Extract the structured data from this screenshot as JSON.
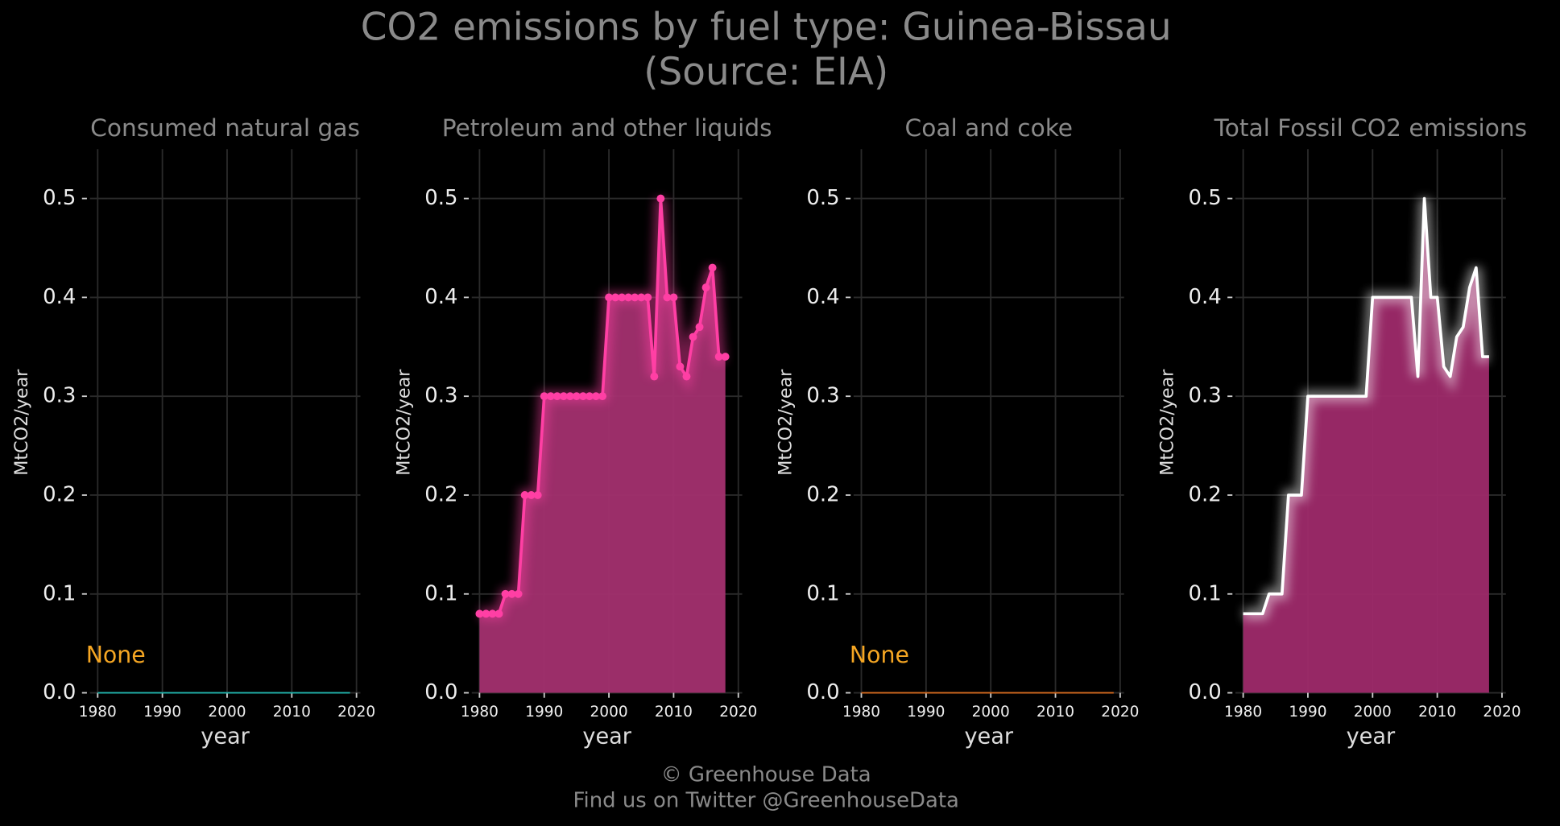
{
  "title": "CO2 emissions by fuel type: Guinea-Bissau",
  "subtitle": "(Source: EIA)",
  "footer": [
    "© Greenhouse Data",
    "Find us on Twitter @GreenhouseData"
  ],
  "chart_data": [
    {
      "type": "line",
      "title": "Consumed natural gas",
      "xlabel": "year",
      "ylabel": "MtCO2/year",
      "annotation": "None",
      "annotation_color": "#f5a623",
      "color": "#20b2aa",
      "x": [
        1980,
        1981,
        1982,
        1983,
        1984,
        1985,
        1986,
        1987,
        1988,
        1989,
        1990,
        1991,
        1992,
        1993,
        1994,
        1995,
        1996,
        1997,
        1998,
        1999,
        2000,
        2001,
        2002,
        2003,
        2004,
        2005,
        2006,
        2007,
        2008,
        2009,
        2010,
        2011,
        2012,
        2013,
        2014,
        2015,
        2016,
        2017,
        2018,
        2019
      ],
      "values": [
        0,
        0,
        0,
        0,
        0,
        0,
        0,
        0,
        0,
        0,
        0,
        0,
        0,
        0,
        0,
        0,
        0,
        0,
        0,
        0,
        0,
        0,
        0,
        0,
        0,
        0,
        0,
        0,
        0,
        0,
        0,
        0,
        0,
        0,
        0,
        0,
        0,
        0,
        0,
        0
      ],
      "xlim": [
        1978.8,
        2020.6
      ],
      "xticks": [
        1980,
        1990,
        2000,
        2010,
        2020
      ],
      "ylim": [
        0,
        0.55
      ],
      "yticks": [
        {
          "value": 0,
          "label": "0.0"
        },
        0.1,
        0.2,
        0.3,
        0.4,
        0.5
      ],
      "grid": true
    },
    {
      "type": "area",
      "title": "Petroleum and other liquids",
      "xlabel": "year",
      "ylabel": "MtCO2/year",
      "color": "#ff3fa4",
      "fill": "#a3306f",
      "markers": true,
      "x": [
        1980,
        1981,
        1982,
        1983,
        1984,
        1985,
        1986,
        1987,
        1988,
        1989,
        1990,
        1991,
        1992,
        1993,
        1994,
        1995,
        1996,
        1997,
        1998,
        1999,
        2000,
        2001,
        2002,
        2003,
        2004,
        2005,
        2006,
        2007,
        2008,
        2009,
        2010,
        2011,
        2012,
        2013,
        2014,
        2015,
        2016,
        2017,
        2018
      ],
      "values": [
        0.08,
        0.08,
        0.08,
        0.08,
        0.1,
        0.1,
        0.1,
        0.2,
        0.2,
        0.2,
        0.3,
        0.3,
        0.3,
        0.3,
        0.3,
        0.3,
        0.3,
        0.3,
        0.3,
        0.3,
        0.4,
        0.4,
        0.4,
        0.4,
        0.4,
        0.4,
        0.4,
        0.32,
        0.5,
        0.4,
        0.4,
        0.33,
        0.32,
        0.36,
        0.37,
        0.41,
        0.43,
        0.34,
        0.34
      ],
      "xlim": [
        1978.8,
        2020.6
      ],
      "xticks": [
        1980,
        1990,
        2000,
        2010,
        2020
      ],
      "ylim": [
        0,
        0.55
      ],
      "yticks": [
        {
          "value": 0,
          "label": "0.0"
        },
        0.1,
        0.2,
        0.3,
        0.4,
        0.5
      ],
      "grid": true
    },
    {
      "type": "line",
      "title": "Coal and coke",
      "xlabel": "year",
      "ylabel": "MtCO2/year",
      "annotation": "None",
      "annotation_color": "#f5a623",
      "color": "#d2691e",
      "x": [
        1980,
        1981,
        1982,
        1983,
        1984,
        1985,
        1986,
        1987,
        1988,
        1989,
        1990,
        1991,
        1992,
        1993,
        1994,
        1995,
        1996,
        1997,
        1998,
        1999,
        2000,
        2001,
        2002,
        2003,
        2004,
        2005,
        2006,
        2007,
        2008,
        2009,
        2010,
        2011,
        2012,
        2013,
        2014,
        2015,
        2016,
        2017,
        2018,
        2019
      ],
      "values": [
        0,
        0,
        0,
        0,
        0,
        0,
        0,
        0,
        0,
        0,
        0,
        0,
        0,
        0,
        0,
        0,
        0,
        0,
        0,
        0,
        0,
        0,
        0,
        0,
        0,
        0,
        0,
        0,
        0,
        0,
        0,
        0,
        0,
        0,
        0,
        0,
        0,
        0,
        0,
        0
      ],
      "xlim": [
        1978.8,
        2020.6
      ],
      "xticks": [
        1980,
        1990,
        2000,
        2010,
        2020
      ],
      "ylim": [
        0,
        0.55
      ],
      "yticks": [
        {
          "value": 0,
          "label": "0.0"
        },
        0.1,
        0.2,
        0.3,
        0.4,
        0.5
      ],
      "grid": true
    },
    {
      "type": "area",
      "title": "Total Fossil CO2 emissions",
      "xlabel": "year",
      "ylabel": "MtCO2/year",
      "color": "#ffffff",
      "fill": "#9e2a6a",
      "markers": false,
      "x": [
        1980,
        1981,
        1982,
        1983,
        1984,
        1985,
        1986,
        1987,
        1988,
        1989,
        1990,
        1991,
        1992,
        1993,
        1994,
        1995,
        1996,
        1997,
        1998,
        1999,
        2000,
        2001,
        2002,
        2003,
        2004,
        2005,
        2006,
        2007,
        2008,
        2009,
        2010,
        2011,
        2012,
        2013,
        2014,
        2015,
        2016,
        2017,
        2018
      ],
      "values": [
        0.08,
        0.08,
        0.08,
        0.08,
        0.1,
        0.1,
        0.1,
        0.2,
        0.2,
        0.2,
        0.3,
        0.3,
        0.3,
        0.3,
        0.3,
        0.3,
        0.3,
        0.3,
        0.3,
        0.3,
        0.4,
        0.4,
        0.4,
        0.4,
        0.4,
        0.4,
        0.4,
        0.32,
        0.5,
        0.4,
        0.4,
        0.33,
        0.32,
        0.36,
        0.37,
        0.41,
        0.43,
        0.34,
        0.34
      ],
      "xlim": [
        1978.8,
        2020.6
      ],
      "xticks": [
        1980,
        1990,
        2000,
        2010,
        2020
      ],
      "ylim": [
        0,
        0.55
      ],
      "yticks": [
        {
          "value": 0,
          "label": "0.0"
        },
        0.1,
        0.2,
        0.3,
        0.4,
        0.5
      ],
      "grid": true
    }
  ]
}
